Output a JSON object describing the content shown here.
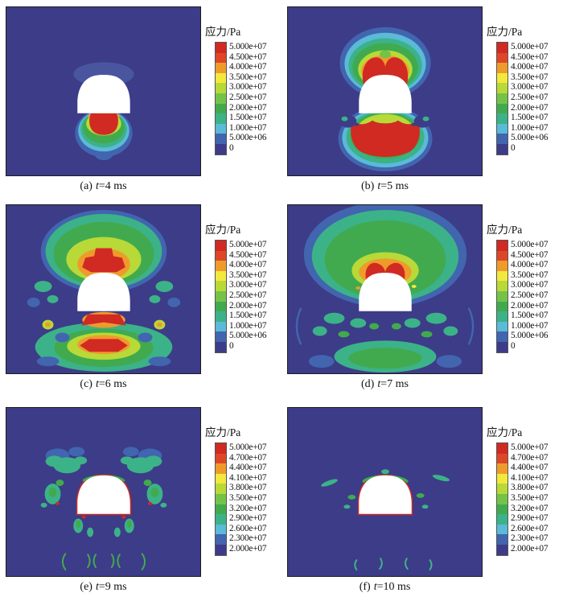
{
  "figure": {
    "legend_title": "应力/Pa",
    "background": "#3d3c88",
    "band_colors": [
      "#d02a22",
      "#dd4727",
      "#ef9b2c",
      "#f2e93c",
      "#b8d938",
      "#74c348",
      "#41aa4f",
      "#3cb288",
      "#5abad8",
      "#4265af",
      "#3d3c88"
    ],
    "palette": {
      "navy": "#3d3c88",
      "halo": "#4a55a0",
      "blue": "#4265af",
      "cyan": "#5abad8",
      "teal": "#3cb288",
      "green": "#41aa4f",
      "lgreen": "#74c348",
      "ygreen": "#b8d938",
      "yellow": "#f2e93c",
      "orange": "#ef9b2c",
      "red": "#d02a22",
      "white": "#ffffff"
    }
  },
  "panels": [
    {
      "id": "a",
      "caption_index": "(a)",
      "caption_t": "t",
      "caption_rest": "=4 ms",
      "legend_title": "应力/Pa",
      "legend_values": [
        "5.000e+07",
        "4.500e+07",
        "4.000e+07",
        "3.500e+07",
        "3.000e+07",
        "2.500e+07",
        "2.000e+07",
        "1.500e+07",
        "1.000e+07",
        "5.000e+06",
        "0"
      ]
    },
    {
      "id": "b",
      "caption_index": "(b)",
      "caption_t": "t",
      "caption_rest": "=5 ms",
      "legend_title": "应力/Pa",
      "legend_values": [
        "5.000e+07",
        "4.500e+07",
        "4.000e+07",
        "3.500e+07",
        "3.000e+07",
        "2.500e+07",
        "2.000e+07",
        "1.500e+07",
        "1.000e+07",
        "5.000e+06",
        "0"
      ]
    },
    {
      "id": "c",
      "caption_index": "(c)",
      "caption_t": "t",
      "caption_rest": "=6 ms",
      "legend_title": "应力/Pa",
      "legend_values": [
        "5.000e+07",
        "4.500e+07",
        "4.000e+07",
        "3.500e+07",
        "3.000e+07",
        "2.500e+07",
        "2.000e+07",
        "1.500e+07",
        "1.000e+07",
        "5.000e+06",
        "0"
      ]
    },
    {
      "id": "d",
      "caption_index": "(d)",
      "caption_t": "t",
      "caption_rest": "=7 ms",
      "legend_title": "应力/Pa",
      "legend_values": [
        "5.000e+07",
        "4.500e+07",
        "4.000e+07",
        "3.500e+07",
        "3.000e+07",
        "2.500e+07",
        "2.000e+07",
        "1.500e+07",
        "1.000e+07",
        "5.000e+06",
        "0"
      ]
    },
    {
      "id": "e",
      "caption_index": "(e)",
      "caption_t": "t",
      "caption_rest": "=9 ms",
      "legend_title": "应力/Pa",
      "legend_values": [
        "5.000e+07",
        "4.700e+07",
        "4.400e+07",
        "4.100e+07",
        "3.800e+07",
        "3.500e+07",
        "3.200e+07",
        "2.900e+07",
        "2.600e+07",
        "2.300e+07",
        "2.000e+07"
      ]
    },
    {
      "id": "f",
      "caption_index": "(f)",
      "caption_t": "t",
      "caption_rest": "=10 ms",
      "legend_title": "应力/Pa",
      "legend_values": [
        "5.000e+07",
        "4.700e+07",
        "4.400e+07",
        "4.100e+07",
        "3.800e+07",
        "3.500e+07",
        "3.200e+07",
        "2.900e+07",
        "2.600e+07",
        "2.300e+07",
        "2.000e+07"
      ]
    }
  ],
  "chart_data": [
    {
      "type": "heatmap",
      "subplot": "a",
      "caption": "(a) t=4 ms",
      "time_ms": 4,
      "colorbar_title": "应力/Pa",
      "level_labels": [
        "5.000e+07",
        "4.500e+07",
        "4.000e+07",
        "3.500e+07",
        "3.000e+07",
        "2.500e+07",
        "2.000e+07",
        "1.500e+07",
        "1.000e+07",
        "5.000e+06",
        "0"
      ],
      "levels_pa": [
        50000000,
        45000000,
        40000000,
        35000000,
        30000000,
        25000000,
        20000000,
        15000000,
        10000000,
        5000000,
        0
      ],
      "legend_position": "right",
      "description": "Arched tunnel cavity (white) in uniform low-stress field; compact red high-stress core directly beneath the floor ringed by green, teal, cyan and blue bands; faint halo above the crown."
    },
    {
      "type": "heatmap",
      "subplot": "b",
      "caption": "(b) t=5 ms",
      "time_ms": 5,
      "colorbar_title": "应力/Pa",
      "level_labels": [
        "5.000e+07",
        "4.500e+07",
        "4.000e+07",
        "3.500e+07",
        "3.000e+07",
        "2.500e+07",
        "2.000e+07",
        "1.500e+07",
        "1.000e+07",
        "5.000e+06",
        "0"
      ],
      "levels_pa": [
        50000000,
        45000000,
        40000000,
        35000000,
        30000000,
        25000000,
        20000000,
        15000000,
        10000000,
        5000000,
        0
      ],
      "legend_position": "right",
      "description": "Two red lobes above the crown and a large red zone below the floor, each surrounded by orange-yellow-green-cyan-blue rings; dark low-stress pockets beside the floor."
    },
    {
      "type": "heatmap",
      "subplot": "c",
      "caption": "(c) t=6 ms",
      "time_ms": 6,
      "colorbar_title": "应力/Pa",
      "level_labels": [
        "5.000e+07",
        "4.500e+07",
        "4.000e+07",
        "3.500e+07",
        "3.000e+07",
        "2.500e+07",
        "2.000e+07",
        "1.500e+07",
        "1.000e+07",
        "5.000e+06",
        "0"
      ],
      "levels_pa": [
        50000000,
        45000000,
        40000000,
        35000000,
        30000000,
        25000000,
        20000000,
        15000000,
        10000000,
        5000000,
        0
      ],
      "legend_position": "right",
      "description": "Broad green/teal halo above the crown with orange-red core; scattered teal/blue reflections at the flanks with two small yellow-orange ring spots; red-orange clusters and a wide teal band below the floor."
    },
    {
      "type": "heatmap",
      "subplot": "d",
      "caption": "(d) t=7 ms",
      "time_ms": 7,
      "colorbar_title": "应力/Pa",
      "level_labels": [
        "5.000e+07",
        "4.500e+07",
        "4.000e+07",
        "3.500e+07",
        "3.000e+07",
        "2.500e+07",
        "2.000e+07",
        "1.500e+07",
        "1.000e+07",
        "5.000e+06",
        "0"
      ],
      "levels_pa": [
        50000000,
        45000000,
        40000000,
        35000000,
        30000000,
        25000000,
        20000000,
        15000000,
        10000000,
        5000000,
        0
      ],
      "legend_position": "right",
      "description": "Very large expanding green halo above with red crown directly on the tunnel top; scattered teal/green patches beside and below the cavity and a green mass with teal ring near the bottom."
    },
    {
      "type": "heatmap",
      "subplot": "e",
      "caption": "(e) t=9 ms",
      "time_ms": 9,
      "colorbar_title": "应力/Pa",
      "level_labels": [
        "5.000e+07",
        "4.700e+07",
        "4.400e+07",
        "4.100e+07",
        "3.800e+07",
        "3.500e+07",
        "3.200e+07",
        "2.900e+07",
        "2.600e+07",
        "2.300e+07",
        "2.000e+07"
      ],
      "levels_pa": [
        50000000,
        47000000,
        44000000,
        41000000,
        38000000,
        35000000,
        32000000,
        29000000,
        26000000,
        23000000,
        20000000
      ],
      "legend_position": "right",
      "description": "Residual butterfly-shaped teal/blue patches flanking the crown, thin red stress rim along the tunnel boundary with green rim at the crown, and small green arc traces below the floor."
    },
    {
      "type": "heatmap",
      "subplot": "f",
      "caption": "(f) t=10 ms",
      "time_ms": 10,
      "colorbar_title": "应力/Pa",
      "level_labels": [
        "5.000e+07",
        "4.700e+07",
        "4.400e+07",
        "4.100e+07",
        "3.800e+07",
        "3.500e+07",
        "3.200e+07",
        "2.900e+07",
        "2.600e+07",
        "2.300e+07",
        "2.000e+07"
      ],
      "levels_pa": [
        50000000,
        47000000,
        44000000,
        41000000,
        38000000,
        35000000,
        32000000,
        29000000,
        26000000,
        23000000,
        20000000
      ],
      "legend_position": "right",
      "description": "Nearly uniform background; only a thin green/red rim remains on the tunnel boundary with a few tiny teal traces beside and beneath the cavity."
    }
  ]
}
